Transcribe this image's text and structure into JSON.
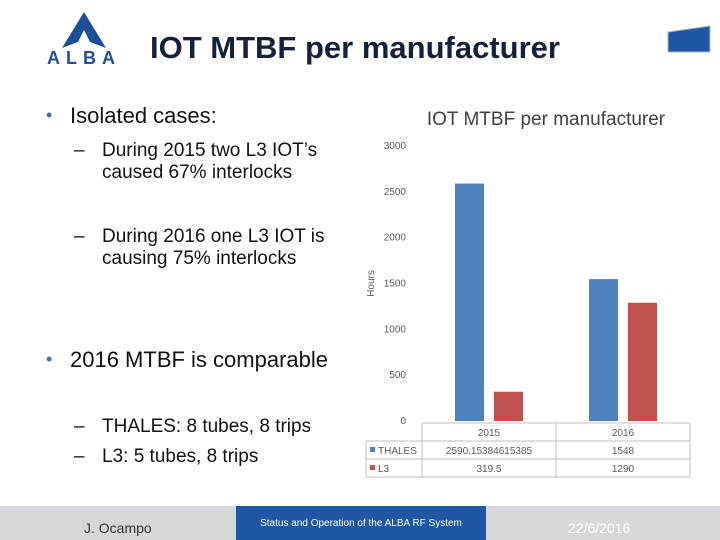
{
  "slide": {
    "title": "IOT MTBF per manufacturer",
    "logo_text": "ALBA"
  },
  "bullets": [
    {
      "text": "Isolated cases:",
      "subs": [
        "During 2015 two L3 IOT’s caused 67% interlocks",
        "During 2016 one L3 IOT is causing 75% interlocks"
      ]
    },
    {
      "text": "2016 MTBF is comparable",
      "subs": [
        "THALES: 8 tubes, 8 trips",
        "L3: 5 tubes, 8 trips"
      ]
    }
  ],
  "footer": {
    "author": "J. Ocampo",
    "center": "Status and Operation of the ALBA RF System",
    "date": "22/6/2016"
  },
  "colors": {
    "title": "#14213d",
    "thales": "#4f81bd",
    "l3": "#c0504d",
    "footer_band": "#1f57a4",
    "footer_bg": "#d5d7db"
  },
  "chart_data": {
    "type": "bar",
    "title": "IOT MTBF per manufacturer",
    "ylabel": "Hours",
    "xlabel": "",
    "categories": [
      "2015",
      "2016"
    ],
    "series": [
      {
        "name": "THALES",
        "values": [
          2590.15384615385,
          1548
        ],
        "labels": [
          "2590.15384615385",
          "1548"
        ],
        "color": "#4f81bd"
      },
      {
        "name": "L3",
        "values": [
          319.5,
          1290
        ],
        "labels": [
          "319.5",
          "1290"
        ],
        "color": "#c0504d"
      }
    ],
    "ylim": [
      0,
      3000
    ],
    "yticks": [
      "0",
      "500",
      "1000",
      "1500",
      "2000",
      "2500",
      "3000"
    ],
    "grid": false,
    "legend": "data table"
  }
}
